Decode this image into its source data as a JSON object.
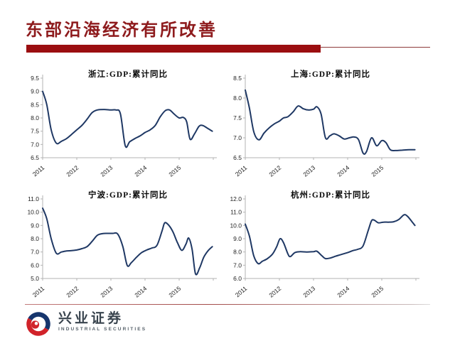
{
  "slide": {
    "title": "东部沿海经济有所改善",
    "title_color": "#8e1b1d",
    "accent_color": "#9b0e10"
  },
  "footer": {
    "logo_text": "兴业证券",
    "logo_subtext": "INDUSTRIAL SECURITIES",
    "logo_red": "#d1232a",
    "logo_blue": "#16356d"
  },
  "chart_data": [
    {
      "type": "line",
      "title": "浙江:GDP:累计同比",
      "region": "浙江",
      "x_tick_labels": [
        "2011",
        "2012",
        "2013",
        "2014",
        "2015"
      ],
      "x_range": [
        2011,
        2016
      ],
      "ylim": [
        6.5,
        9.5
      ],
      "yticks": [
        6.5,
        7.0,
        7.5,
        8.0,
        8.5,
        9.0,
        9.5
      ],
      "line_color": "#1f3864",
      "axis_color": "#b3b3b3",
      "grid": false,
      "legend": "none",
      "series": [
        {
          "name": "浙江:GDP:累计同比",
          "points": [
            [
              2011.0,
              9.0
            ],
            [
              2011.12,
              8.5
            ],
            [
              2011.25,
              7.55
            ],
            [
              2011.4,
              7.05
            ],
            [
              2011.55,
              7.12
            ],
            [
              2011.7,
              7.22
            ],
            [
              2011.85,
              7.38
            ],
            [
              2012.0,
              7.55
            ],
            [
              2012.15,
              7.72
            ],
            [
              2012.3,
              7.95
            ],
            [
              2012.45,
              8.2
            ],
            [
              2012.6,
              8.3
            ],
            [
              2012.8,
              8.32
            ],
            [
              2013.0,
              8.3
            ],
            [
              2013.15,
              8.3
            ],
            [
              2013.28,
              8.15
            ],
            [
              2013.42,
              6.95
            ],
            [
              2013.55,
              7.1
            ],
            [
              2013.7,
              7.22
            ],
            [
              2013.85,
              7.32
            ],
            [
              2014.0,
              7.45
            ],
            [
              2014.15,
              7.55
            ],
            [
              2014.3,
              7.72
            ],
            [
              2014.45,
              8.05
            ],
            [
              2014.6,
              8.28
            ],
            [
              2014.72,
              8.3
            ],
            [
              2014.85,
              8.15
            ],
            [
              2015.0,
              8.0
            ],
            [
              2015.12,
              8.02
            ],
            [
              2015.22,
              7.85
            ],
            [
              2015.32,
              7.2
            ],
            [
              2015.45,
              7.4
            ],
            [
              2015.58,
              7.68
            ],
            [
              2015.68,
              7.72
            ],
            [
              2015.82,
              7.62
            ],
            [
              2015.97,
              7.5
            ]
          ]
        }
      ]
    },
    {
      "type": "line",
      "title": "上海:GDP:累计同比",
      "region": "上海",
      "x_tick_labels": [
        "2011",
        "2012",
        "2013",
        "2014",
        "2015"
      ],
      "x_range": [
        2011,
        2016
      ],
      "ylim": [
        6.5,
        8.5
      ],
      "yticks": [
        6.5,
        7.0,
        7.5,
        8.0,
        8.5
      ],
      "line_color": "#1f3864",
      "axis_color": "#b3b3b3",
      "grid": false,
      "legend": "none",
      "series": [
        {
          "name": "上海:GDP:累计同比",
          "points": [
            [
              2011.0,
              8.2
            ],
            [
              2011.12,
              7.75
            ],
            [
              2011.25,
              7.15
            ],
            [
              2011.4,
              6.95
            ],
            [
              2011.55,
              7.12
            ],
            [
              2011.7,
              7.25
            ],
            [
              2011.85,
              7.35
            ],
            [
              2012.0,
              7.42
            ],
            [
              2012.12,
              7.5
            ],
            [
              2012.25,
              7.53
            ],
            [
              2012.4,
              7.65
            ],
            [
              2012.55,
              7.8
            ],
            [
              2012.7,
              7.73
            ],
            [
              2012.85,
              7.7
            ],
            [
              2013.0,
              7.72
            ],
            [
              2013.1,
              7.78
            ],
            [
              2013.22,
              7.6
            ],
            [
              2013.35,
              7.0
            ],
            [
              2013.48,
              7.05
            ],
            [
              2013.6,
              7.1
            ],
            [
              2013.75,
              7.05
            ],
            [
              2013.9,
              6.97
            ],
            [
              2014.05,
              7.0
            ],
            [
              2014.2,
              7.02
            ],
            [
              2014.32,
              6.95
            ],
            [
              2014.45,
              6.62
            ],
            [
              2014.55,
              6.65
            ],
            [
              2014.7,
              7.0
            ],
            [
              2014.85,
              6.8
            ],
            [
              2015.0,
              6.93
            ],
            [
              2015.12,
              6.88
            ],
            [
              2015.25,
              6.7
            ],
            [
              2015.4,
              6.68
            ],
            [
              2015.6,
              6.69
            ],
            [
              2015.8,
              6.7
            ],
            [
              2015.97,
              6.7
            ]
          ]
        }
      ]
    },
    {
      "type": "line",
      "title": "宁波:GDP:累计同比",
      "region": "宁波",
      "x_tick_labels": [
        "2011",
        "2012",
        "2013",
        "2014",
        "2015"
      ],
      "x_range": [
        2011,
        2016
      ],
      "ylim": [
        5.0,
        11.0
      ],
      "yticks": [
        5.0,
        6.0,
        7.0,
        8.0,
        9.0,
        10.0,
        11.0
      ],
      "line_color": "#1f3864",
      "axis_color": "#b3b3b3",
      "grid": false,
      "legend": "none",
      "series": [
        {
          "name": "宁波:GDP:累计同比",
          "points": [
            [
              2011.0,
              10.3
            ],
            [
              2011.12,
              9.5
            ],
            [
              2011.25,
              8.0
            ],
            [
              2011.4,
              6.9
            ],
            [
              2011.55,
              7.0
            ],
            [
              2011.7,
              7.08
            ],
            [
              2011.85,
              7.1
            ],
            [
              2012.0,
              7.15
            ],
            [
              2012.15,
              7.25
            ],
            [
              2012.3,
              7.4
            ],
            [
              2012.45,
              7.8
            ],
            [
              2012.6,
              8.25
            ],
            [
              2012.75,
              8.38
            ],
            [
              2012.9,
              8.4
            ],
            [
              2013.05,
              8.4
            ],
            [
              2013.2,
              8.35
            ],
            [
              2013.35,
              7.4
            ],
            [
              2013.48,
              5.98
            ],
            [
              2013.6,
              6.2
            ],
            [
              2013.75,
              6.6
            ],
            [
              2013.9,
              6.95
            ],
            [
              2014.05,
              7.15
            ],
            [
              2014.2,
              7.3
            ],
            [
              2014.35,
              7.5
            ],
            [
              2014.5,
              8.6
            ],
            [
              2014.58,
              9.2
            ],
            [
              2014.7,
              9.0
            ],
            [
              2014.82,
              8.5
            ],
            [
              2014.95,
              7.7
            ],
            [
              2015.08,
              7.12
            ],
            [
              2015.2,
              7.6
            ],
            [
              2015.28,
              8.05
            ],
            [
              2015.38,
              7.2
            ],
            [
              2015.48,
              5.35
            ],
            [
              2015.6,
              5.8
            ],
            [
              2015.72,
              6.6
            ],
            [
              2015.85,
              7.1
            ],
            [
              2015.97,
              7.4
            ]
          ]
        }
      ]
    },
    {
      "type": "line",
      "title": "杭州:GDP:累计同比",
      "region": "杭州",
      "x_tick_labels": [
        "2011",
        "2012",
        "2013",
        "2014",
        "2015"
      ],
      "x_range": [
        2011,
        2016
      ],
      "ylim": [
        6.0,
        12.0
      ],
      "yticks": [
        6.0,
        7.0,
        8.0,
        9.0,
        10.0,
        11.0,
        12.0
      ],
      "line_color": "#1f3864",
      "axis_color": "#b3b3b3",
      "grid": false,
      "legend": "none",
      "series": [
        {
          "name": "杭州:GDP:累计同比",
          "points": [
            [
              2011.0,
              10.1
            ],
            [
              2011.12,
              9.2
            ],
            [
              2011.25,
              7.7
            ],
            [
              2011.38,
              7.12
            ],
            [
              2011.5,
              7.3
            ],
            [
              2011.65,
              7.5
            ],
            [
              2011.8,
              7.85
            ],
            [
              2011.92,
              8.4
            ],
            [
              2012.02,
              9.0
            ],
            [
              2012.12,
              8.7
            ],
            [
              2012.25,
              7.85
            ],
            [
              2012.32,
              7.65
            ],
            [
              2012.45,
              7.95
            ],
            [
              2012.6,
              8.02
            ],
            [
              2012.8,
              8.0
            ],
            [
              2013.0,
              8.02
            ],
            [
              2013.1,
              8.05
            ],
            [
              2013.25,
              7.7
            ],
            [
              2013.35,
              7.5
            ],
            [
              2013.5,
              7.55
            ],
            [
              2013.65,
              7.68
            ],
            [
              2013.8,
              7.8
            ],
            [
              2014.0,
              7.95
            ],
            [
              2014.15,
              8.1
            ],
            [
              2014.3,
              8.2
            ],
            [
              2014.45,
              8.45
            ],
            [
              2014.6,
              9.6
            ],
            [
              2014.7,
              10.35
            ],
            [
              2014.78,
              10.4
            ],
            [
              2014.9,
              10.2
            ],
            [
              2015.05,
              10.25
            ],
            [
              2015.2,
              10.25
            ],
            [
              2015.35,
              10.28
            ],
            [
              2015.5,
              10.45
            ],
            [
              2015.65,
              10.8
            ],
            [
              2015.75,
              10.7
            ],
            [
              2015.88,
              10.3
            ],
            [
              2015.97,
              10.0
            ]
          ]
        }
      ]
    }
  ]
}
